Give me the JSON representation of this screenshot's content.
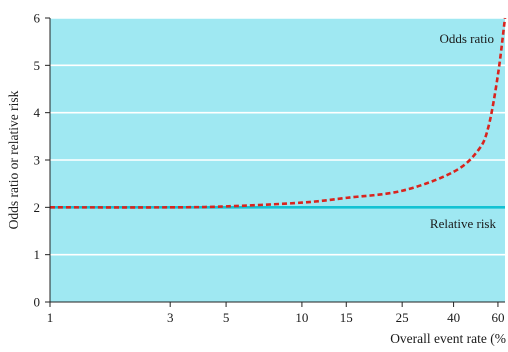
{
  "chart_data": {
    "type": "line",
    "xlabel": "Overall event rate (%",
    "ylabel": "Odds ratio or relative risk",
    "x_scale": "log",
    "xlim": [
      1,
      64
    ],
    "ylim": [
      0,
      6
    ],
    "x_ticks": [
      1,
      3,
      5,
      10,
      15,
      25,
      40,
      60
    ],
    "y_ticks": [
      0,
      1,
      2,
      3,
      4,
      5,
      6
    ],
    "grid": "horizontal",
    "background_color": "#9fe8f2",
    "series": [
      {
        "name": "Relative risk",
        "color": "#13c2d3",
        "style": "solid",
        "x": [
          1,
          64
        ],
        "y": [
          2,
          2
        ]
      },
      {
        "name": "Odds ratio",
        "color": "#d9241e",
        "style": "dashed",
        "x": [
          1,
          3,
          5,
          10,
          15,
          25,
          40,
          50,
          55,
          60,
          64
        ],
        "y": [
          2.0,
          2.0,
          2.02,
          2.1,
          2.2,
          2.35,
          2.75,
          3.2,
          3.7,
          4.8,
          6.0
        ]
      }
    ]
  }
}
